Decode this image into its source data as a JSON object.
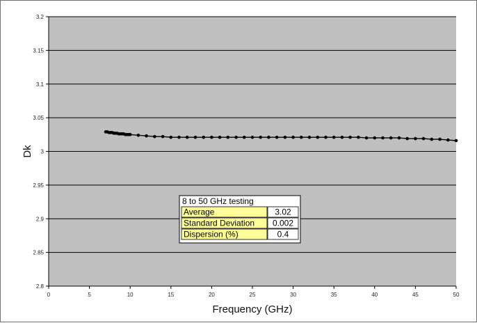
{
  "colors": {
    "plot_background": "#c0c0c0",
    "gridline": "#000000",
    "series": "#000000",
    "stats_label_fill": "#ffff99",
    "stats_value_fill": "#ffffff"
  },
  "chart_data": {
    "type": "line",
    "title": "",
    "xlabel": "Frequency (GHz)",
    "ylabel": "Dk",
    "xlim": [
      0,
      50
    ],
    "ylim": [
      2.8,
      3.2
    ],
    "x_ticks": [
      "0",
      "5",
      "10",
      "15",
      "20",
      "25",
      "30",
      "35",
      "40",
      "45",
      "50"
    ],
    "y_ticks": [
      "2.8",
      "2.85",
      "2.9",
      "2.95",
      "3",
      "3.05",
      "3.1",
      "3.15",
      "3.2"
    ],
    "grid": "horizontal major gridlines",
    "legend": "none",
    "series": [
      {
        "marker": "filled-circle",
        "points": [
          [
            7.0,
            3.029
          ],
          [
            7.2,
            3.029
          ],
          [
            7.4,
            3.028
          ],
          [
            7.6,
            3.028
          ],
          [
            7.8,
            3.028
          ],
          [
            8.0,
            3.027
          ],
          [
            8.2,
            3.027
          ],
          [
            8.4,
            3.027
          ],
          [
            8.6,
            3.026
          ],
          [
            8.8,
            3.026
          ],
          [
            9.0,
            3.026
          ],
          [
            9.2,
            3.026
          ],
          [
            9.4,
            3.025
          ],
          [
            9.6,
            3.025
          ],
          [
            9.8,
            3.025
          ],
          [
            10.0,
            3.025
          ],
          [
            11.0,
            3.024
          ],
          [
            12.0,
            3.023
          ],
          [
            13.0,
            3.022
          ],
          [
            14.0,
            3.022
          ],
          [
            15.0,
            3.021
          ],
          [
            16.0,
            3.021
          ],
          [
            17.0,
            3.021
          ],
          [
            18.0,
            3.021
          ],
          [
            19.0,
            3.021
          ],
          [
            20.0,
            3.021
          ],
          [
            21.0,
            3.021
          ],
          [
            22.0,
            3.021
          ],
          [
            23.0,
            3.021
          ],
          [
            24.0,
            3.021
          ],
          [
            25.0,
            3.021
          ],
          [
            26.0,
            3.021
          ],
          [
            27.0,
            3.021
          ],
          [
            28.0,
            3.021
          ],
          [
            29.0,
            3.021
          ],
          [
            30.0,
            3.021
          ],
          [
            31.0,
            3.021
          ],
          [
            32.0,
            3.021
          ],
          [
            33.0,
            3.021
          ],
          [
            34.0,
            3.021
          ],
          [
            35.0,
            3.021
          ],
          [
            36.0,
            3.021
          ],
          [
            37.0,
            3.021
          ],
          [
            38.0,
            3.021
          ],
          [
            39.0,
            3.02
          ],
          [
            40.0,
            3.02
          ],
          [
            41.0,
            3.02
          ],
          [
            42.0,
            3.02
          ],
          [
            43.0,
            3.02
          ],
          [
            44.0,
            3.019
          ],
          [
            45.0,
            3.019
          ],
          [
            46.0,
            3.019
          ],
          [
            47.0,
            3.018
          ],
          [
            48.0,
            3.018
          ],
          [
            49.0,
            3.017
          ],
          [
            50.0,
            3.016
          ]
        ]
      }
    ],
    "annotation_table": {
      "title": "8 to 50 GHz testing",
      "rows": [
        {
          "label": "Average",
          "value": "3.02"
        },
        {
          "label": "Standard Deviation",
          "value": "0.002"
        },
        {
          "label": "Dispersion (%)",
          "value": "0.4"
        }
      ]
    }
  }
}
